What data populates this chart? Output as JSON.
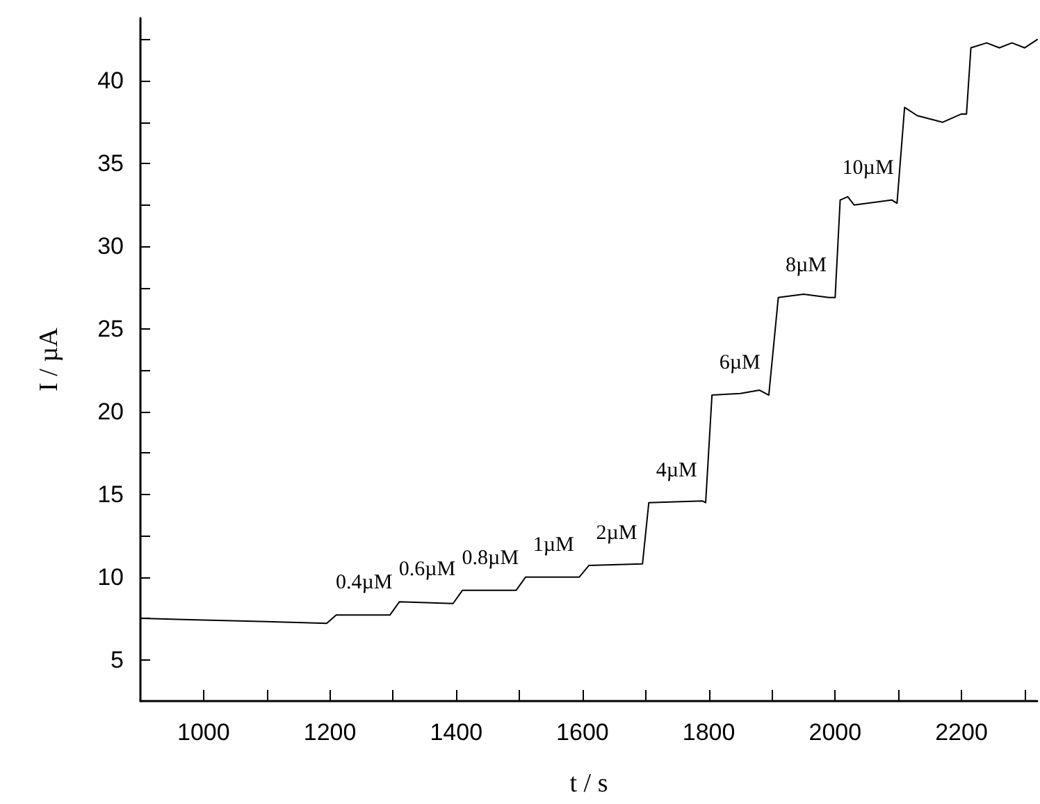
{
  "chart_data": {
    "type": "line",
    "xlabel": "t / s",
    "ylabel": "I / µA",
    "x": [
      900,
      1000,
      1100,
      1195,
      1210,
      1295,
      1310,
      1395,
      1410,
      1495,
      1510,
      1595,
      1610,
      1695,
      1705,
      1790,
      1795,
      1805,
      1850,
      1880,
      1895,
      1910,
      1950,
      1990,
      2000,
      2008,
      2020,
      2030,
      2090,
      2098,
      2110,
      2130,
      2170,
      2200,
      2208,
      2215,
      2240,
      2260,
      2280,
      2300,
      2320
    ],
    "series": [
      {
        "color": "#000000",
        "values": [
          7.5,
          7.4,
          7.3,
          7.2,
          7.7,
          7.7,
          8.5,
          8.4,
          9.2,
          9.2,
          10.0,
          10.0,
          10.7,
          10.8,
          14.5,
          14.6,
          14.5,
          21.0,
          21.1,
          21.3,
          21.0,
          26.9,
          27.1,
          26.9,
          26.9,
          32.8,
          33.0,
          32.5,
          32.8,
          32.6,
          38.4,
          37.9,
          37.5,
          38.0,
          38.0,
          42.0,
          42.3,
          42.0,
          42.3,
          42.0,
          42.5
        ]
      }
    ],
    "annotations": [
      "0.4µM",
      "0.6µM",
      "0.8µM",
      "1µM",
      "2µM",
      "4µM",
      "6µM",
      "8µM",
      "10µM"
    ],
    "xlim": [
      900,
      2320
    ],
    "xticks": [
      1000,
      {
        "value": 1100,
        "label": null
      },
      1200,
      {
        "value": 1300,
        "label": null
      },
      1400,
      {
        "value": 1500,
        "label": null
      },
      1600,
      {
        "value": 1700,
        "label": null
      },
      1800,
      {
        "value": 1900,
        "label": null
      },
      2000,
      {
        "value": 2100,
        "label": null
      },
      2200,
      {
        "value": 2300,
        "label": null
      }
    ],
    "ylim": [
      2.5,
      43.8
    ],
    "yticks": [
      5,
      {
        "value": 7.5,
        "label": null
      },
      10,
      {
        "value": 12.5,
        "label": null
      },
      15,
      {
        "value": 17.5,
        "label": null
      },
      20,
      {
        "value": 22.5,
        "label": null
      },
      25,
      {
        "value": 27.5,
        "label": null
      },
      30,
      {
        "value": 32.5,
        "label": null
      },
      35,
      {
        "value": 37.5,
        "label": null
      },
      40,
      {
        "value": 42.5,
        "label": null
      }
    ],
    "grid": false,
    "marker": "none",
    "line_style": "solid"
  }
}
